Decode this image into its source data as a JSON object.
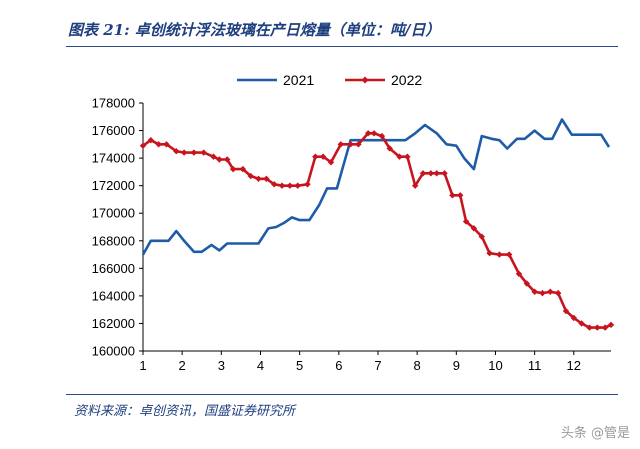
{
  "header": {
    "title": "图表 21:  卓创统计浮法玻璃在产日熔量（单位：吨/日）"
  },
  "footer": {
    "source": "资料来源：卓创资讯，国盛证券研究所"
  },
  "watermark": {
    "text": "头条 @管是"
  },
  "colors": {
    "series_2021": "#1f5ca8",
    "series_2022": "#c8141e",
    "title": "#1f3f7f"
  },
  "chart_data": {
    "type": "line",
    "title": "卓创统计浮法玻璃在产日熔量（单位：吨/日）",
    "xlabel": "",
    "ylabel": "",
    "xlim": [
      1,
      12.95
    ],
    "ylim": [
      160000,
      178000
    ],
    "x_ticks": [
      1,
      2,
      3,
      4,
      5,
      6,
      7,
      8,
      9,
      10,
      11,
      12
    ],
    "y_ticks": [
      160000,
      162000,
      164000,
      166000,
      168000,
      170000,
      172000,
      174000,
      176000,
      178000
    ],
    "grid": false,
    "legend": "top-center",
    "series": [
      {
        "name": "2021",
        "color": "#1f5ca8",
        "marker": "none",
        "x": [
          1.0,
          1.2,
          1.45,
          1.65,
          1.85,
          2.05,
          2.3,
          2.5,
          2.75,
          2.95,
          3.15,
          3.3,
          3.45,
          3.7,
          3.95,
          4.2,
          4.4,
          4.6,
          4.8,
          5.0,
          5.25,
          5.5,
          5.7,
          5.95,
          6.1,
          6.3,
          6.55,
          6.8,
          7.0,
          7.2,
          7.45,
          7.7,
          7.95,
          8.2,
          8.5,
          8.75,
          9.0,
          9.2,
          9.45,
          9.65,
          9.9,
          10.1,
          10.3,
          10.55,
          10.75,
          11.0,
          11.25,
          11.45,
          11.7,
          11.95,
          12.15,
          12.4,
          12.7,
          12.9
        ],
        "y": [
          167000,
          168000,
          168000,
          168000,
          168700,
          168000,
          167200,
          167200,
          167700,
          167300,
          167800,
          167800,
          167800,
          167800,
          167800,
          168900,
          169000,
          169300,
          169700,
          169500,
          169500,
          170600,
          171800,
          171800,
          173300,
          175300,
          175300,
          175300,
          175300,
          175300,
          175300,
          175300,
          175800,
          176400,
          175800,
          175000,
          174900,
          174000,
          173200,
          175600,
          175400,
          175300,
          174700,
          175400,
          175400,
          176000,
          175400,
          175400,
          176800,
          175700,
          175700,
          175700,
          175700,
          174800
        ]
      },
      {
        "name": "2022",
        "color": "#c8141e",
        "marker": "diamond",
        "x": [
          1.0,
          1.2,
          1.4,
          1.6,
          1.85,
          2.05,
          2.3,
          2.55,
          2.8,
          2.95,
          3.15,
          3.3,
          3.55,
          3.75,
          3.95,
          4.15,
          4.35,
          4.55,
          4.75,
          4.95,
          5.2,
          5.4,
          5.6,
          5.8,
          6.05,
          6.3,
          6.5,
          6.75,
          6.9,
          7.1,
          7.3,
          7.55,
          7.75,
          7.95,
          8.15,
          8.35,
          8.5,
          8.7,
          8.9,
          9.1,
          9.25,
          9.45,
          9.65,
          9.85,
          10.1,
          10.35,
          10.6,
          10.8,
          11.0,
          11.2,
          11.4,
          11.6,
          11.8,
          12.0,
          12.2,
          12.4,
          12.6,
          12.8,
          12.95
        ],
        "y": [
          174900,
          175300,
          175000,
          175000,
          174500,
          174400,
          174400,
          174400,
          174100,
          173900,
          173900,
          173200,
          173200,
          172700,
          172500,
          172500,
          172100,
          172000,
          172000,
          172000,
          172100,
          174100,
          174100,
          173700,
          175000,
          175000,
          175000,
          175800,
          175800,
          175600,
          174700,
          174100,
          174100,
          172000,
          172900,
          172900,
          172900,
          172900,
          171300,
          171300,
          169400,
          168900,
          168300,
          167100,
          167000,
          167000,
          165600,
          164900,
          164300,
          164200,
          164300,
          164200,
          162900,
          162400,
          162000,
          161700,
          161700,
          161700,
          161900
        ]
      }
    ]
  }
}
